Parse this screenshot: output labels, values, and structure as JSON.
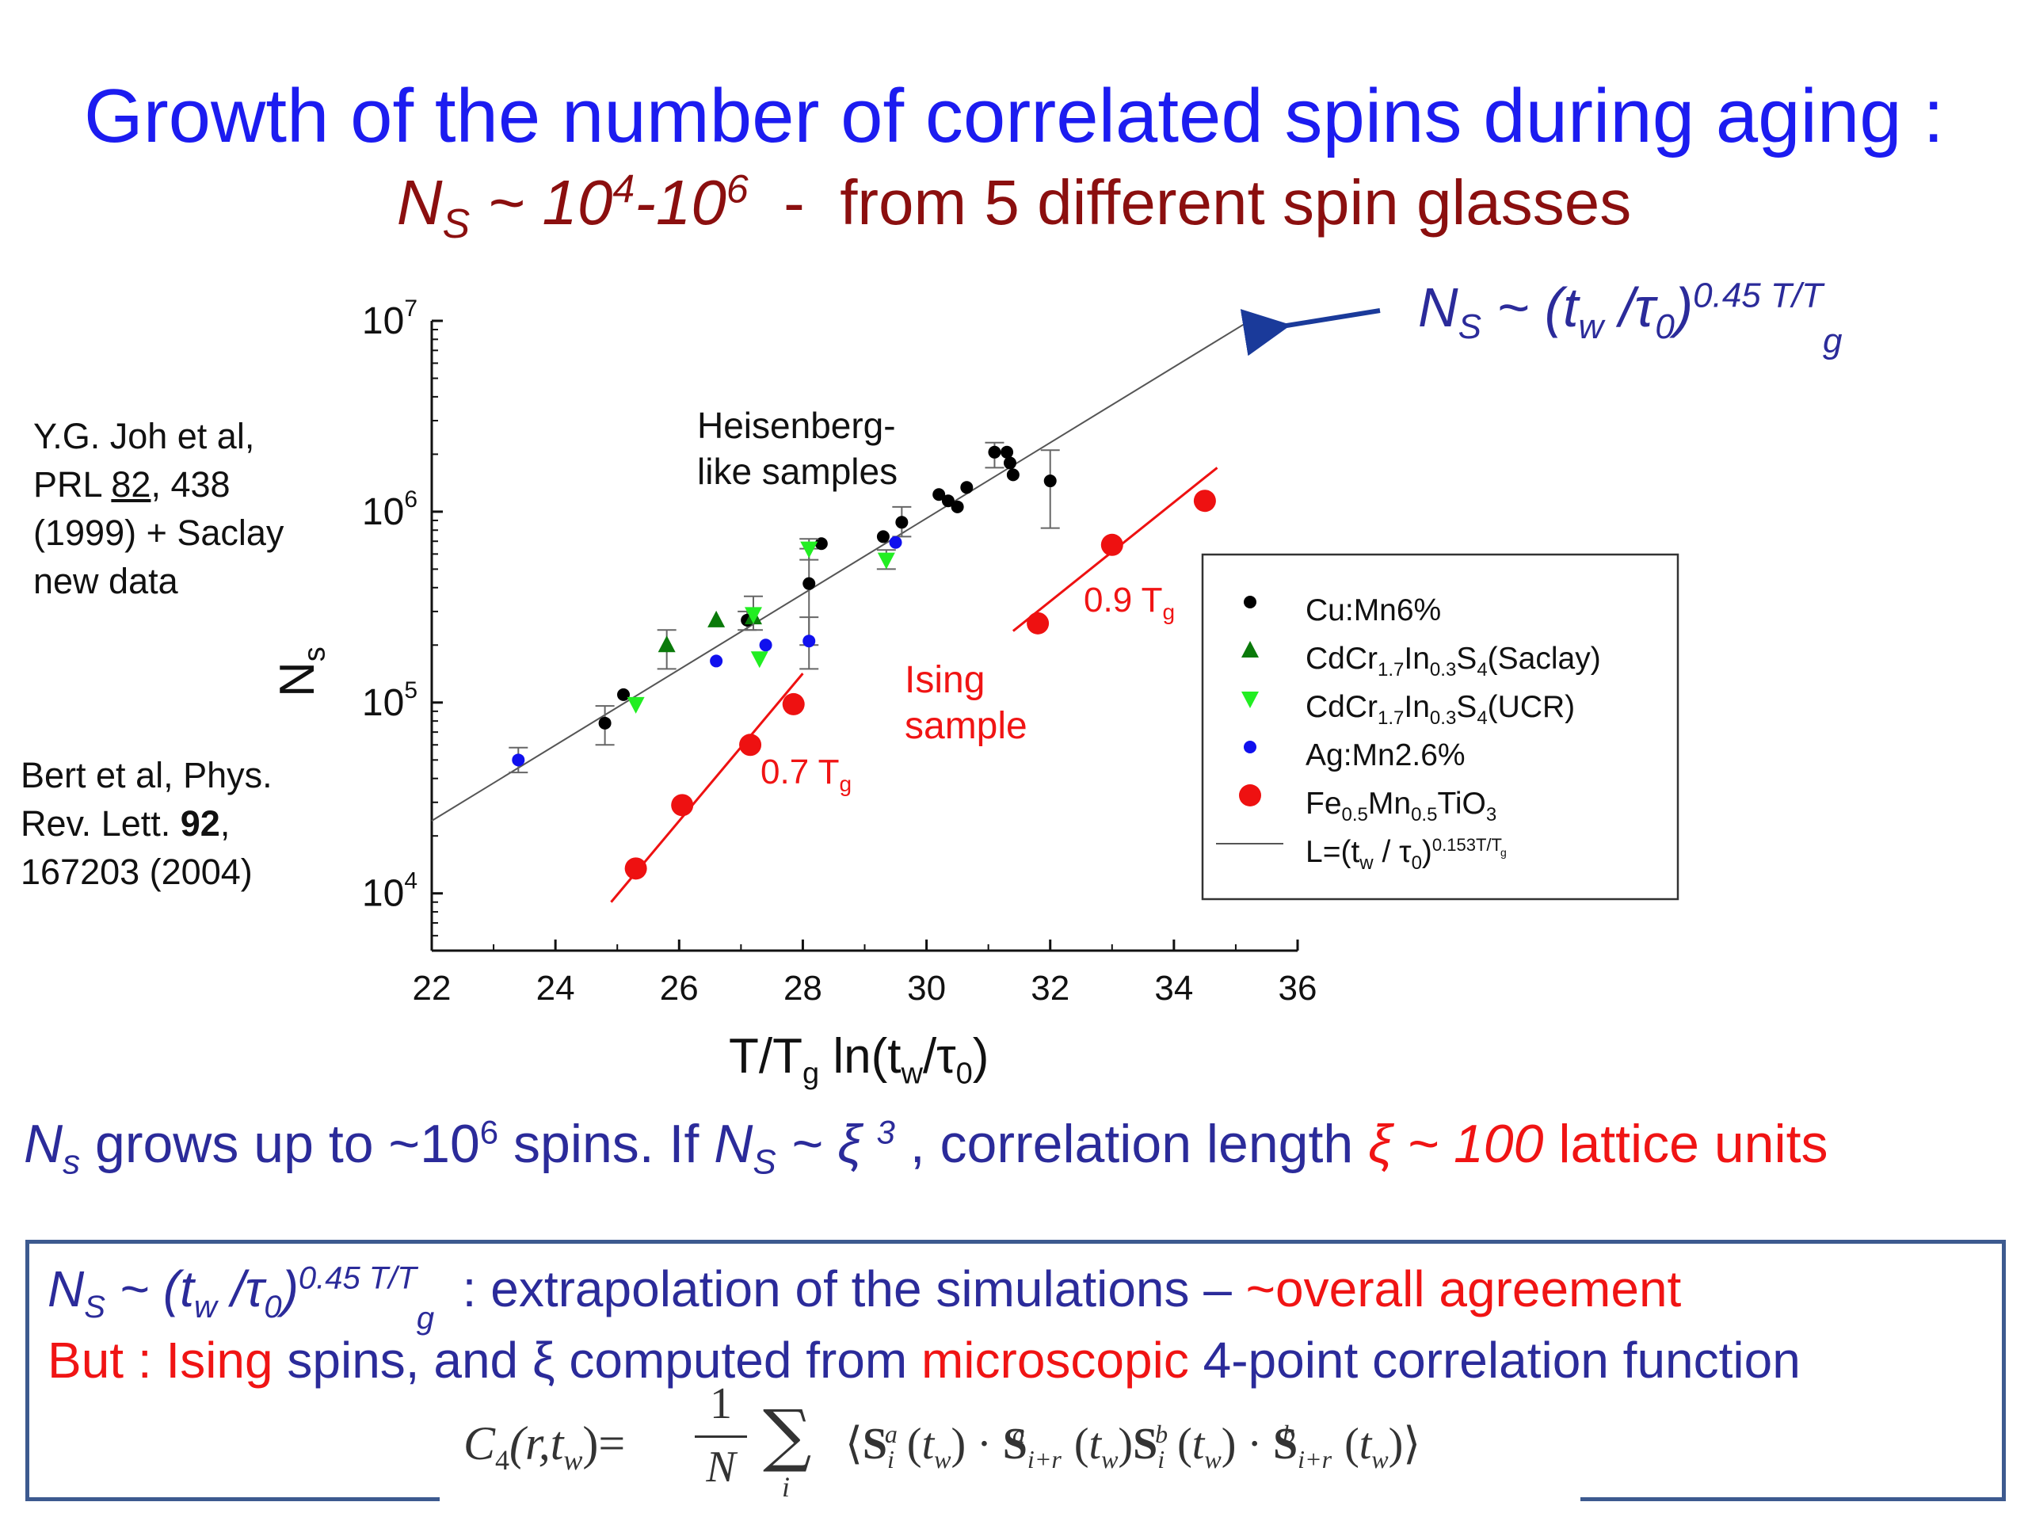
{
  "slide": {
    "title": "Growth of the number of correlated spins during aging :",
    "subtitle_ns": "N",
    "subtitle_ns_sub": "S",
    "subtitle_approx": " ~ 10",
    "subtitle_exp1": "4",
    "subtitle_mid": "-10",
    "subtitle_exp2": "6",
    "subtitle_rest": "  -  from 5 different spin glasses",
    "ref1_lines": [
      "Y.G. Joh et al,",
      "PRL 82, 438",
      "(1999) + Saclay",
      "new data"
    ],
    "ref1_l2_a": "PRL ",
    "ref1_l2_b": "82",
    "ref1_l2_c": ", 438",
    "ref2_l1": "Bert et al, Phys.",
    "ref2_l2_a": "Rev. Lett. ",
    "ref2_l2_b": "92",
    "ref2_l2_c": ",",
    "ref2_l3": "167203 (2004)",
    "law_ns": "N",
    "law_sub": "S",
    "law_mid": " ~ (t",
    "law_w": "w",
    "law_tau": " /τ",
    "law_0": "0",
    "law_close": ")",
    "law_exp": "0.45 T/T",
    "law_g": "g",
    "sentence": {
      "p1": "N",
      "p1sub": "s",
      "p2": " grows up to ~10",
      "p2sup": "6",
      "p3": " spins. If ",
      "p4": "N",
      "p4sub": "S",
      "p5": " ~ ξ ",
      "p5sup": "3",
      "p6": " , correlation length ",
      "p7": "ξ ~ ",
      "p8": "100",
      "p9": " lattice units"
    },
    "box": {
      "l1_ns": "N",
      "l1_sub": "S",
      "l1_mid": " ~ (t",
      "l1_w": "w",
      "l1_tau": " /τ",
      "l1_0": "0",
      "l1_close": ")",
      "l1_exp": "0.45 T/T",
      "l1_g": "g",
      "l1_text": "  : extrapolation of the simulations – ",
      "l1_red": "~overall agreement",
      "l2_but": "But : ",
      "l2_ising": "Ising",
      "l2_mid": " spins, and ξ computed from ",
      "l2_micro": "microscopic",
      "l2_end": " 4-point correlation function",
      "formula_lhs": "C",
      "formula_lhs_sub": "4",
      "formula_args": "(r,t",
      "formula_w": "w",
      "formula_eq": ")=",
      "formula_num": "1",
      "formula_den": "N",
      "formula_sum": "∑",
      "formula_i": "i",
      "formula_body": "⟨S",
      "formula_body_full": "⟨S(t)·S(t)S(t)·S(t)⟩"
    }
  },
  "colors": {
    "title": "#1c1cf0",
    "subtitle": "#8b0f0f",
    "blue_text": "#2b2b9a",
    "red": "#f01414",
    "black_series": "#000000",
    "green_series": "#0a7a0a",
    "lime_series": "#22ee22",
    "blue_series": "#1010ee",
    "red_series": "#ee1111"
  },
  "chart_data": {
    "type": "scatter",
    "xlabel_main": "T/T",
    "xlabel_sub1": "g",
    "xlabel_ln": " ln(t",
    "xlabel_sub2": "w",
    "xlabel_tau": "/τ",
    "xlabel_sub3": "0",
    "xlabel_close": ")",
    "ylabel": "N",
    "ylabel_sub": "s",
    "xlim": [
      22,
      36
    ],
    "ylim_log10": [
      3.7,
      7
    ],
    "y_scale": "log",
    "x_ticks": [
      22,
      24,
      26,
      28,
      30,
      32,
      34,
      36
    ],
    "y_ticks": [
      {
        "base": "10",
        "exp": "4",
        "v": 4
      },
      {
        "base": "10",
        "exp": "5",
        "v": 5
      },
      {
        "base": "10",
        "exp": "6",
        "v": 6
      },
      {
        "base": "10",
        "exp": "7",
        "v": 7
      }
    ],
    "annotations": {
      "heisenberg": [
        "Heisenberg-",
        "like samples"
      ],
      "ising": [
        "Ising",
        "sample"
      ],
      "t07": "0.7 T",
      "t07sub": "g",
      "t09": "0.9 T",
      "t09sub": "g"
    },
    "legend": {
      "placement": "right",
      "entries": [
        {
          "name": "Cu:Mn6%"
        },
        {
          "name_parts": [
            "CdCr",
            "1.7",
            "In",
            "0.3",
            "S",
            "4",
            "(Saclay)"
          ]
        },
        {
          "name_parts": [
            "CdCr",
            "1.7",
            "In",
            "0.3",
            "S",
            "4",
            "(UCR)"
          ]
        },
        {
          "name": "Ag:Mn2.6%"
        },
        {
          "name_parts": [
            "Fe",
            "0.5",
            "Mn",
            "0.5",
            "TiO",
            "3"
          ]
        },
        {
          "name_parts": [
            "L=(t",
            "w",
            " / τ",
            "0",
            ")",
            "0.153T/T",
            "g"
          ]
        }
      ]
    },
    "fit_lines": [
      {
        "name": "L=(t_w / τ_0)^0.153T/T_g",
        "x": [
          22,
          35.2
        ],
        "y": [
          24000,
          9900000
        ],
        "color": "#555555"
      },
      {
        "name": "Ising 0.7 Tg",
        "x": [
          24.9,
          28.0
        ],
        "y": [
          9000,
          142000
        ],
        "color": "#ee1111"
      },
      {
        "name": "Ising 0.9 Tg",
        "x": [
          31.4,
          34.7
        ],
        "y": [
          237000,
          1700000
        ],
        "color": "#ee1111"
      }
    ],
    "series": [
      {
        "name": "Cu:Mn6%",
        "marker": "circle-small",
        "color": "#000000",
        "points": [
          {
            "x": 24.8,
            "y": 78000,
            "lo": 60000,
            "hi": 96000
          },
          {
            "x": 25.1,
            "y": 110000
          },
          {
            "x": 27.1,
            "y": 270000,
            "lo": 240000,
            "hi": 300000
          },
          {
            "x": 28.1,
            "y": 420000,
            "lo": 200000,
            "hi": 640000
          },
          {
            "x": 28.3,
            "y": 680000
          },
          {
            "x": 29.3,
            "y": 740000
          },
          {
            "x": 29.6,
            "y": 880000,
            "lo": 740000,
            "hi": 1060000
          },
          {
            "x": 30.2,
            "y": 1230000
          },
          {
            "x": 30.35,
            "y": 1140000
          },
          {
            "x": 30.5,
            "y": 1060000
          },
          {
            "x": 30.65,
            "y": 1340000
          },
          {
            "x": 31.1,
            "y": 2050000,
            "lo": 1700000,
            "hi": 2300000
          },
          {
            "x": 31.3,
            "y": 2050000
          },
          {
            "x": 31.35,
            "y": 1800000
          },
          {
            "x": 31.4,
            "y": 1560000
          },
          {
            "x": 32.0,
            "y": 1450000,
            "lo": 820000,
            "hi": 2100000
          }
        ]
      },
      {
        "name": "CdCr1.7In0.3S4(Saclay)",
        "marker": "triangle-up",
        "color": "#0a7a0a",
        "points": [
          {
            "x": 25.8,
            "y": 200000,
            "lo": 150000,
            "hi": 240000
          },
          {
            "x": 26.6,
            "y": 270000
          },
          {
            "x": 27.2,
            "y": 280000
          }
        ]
      },
      {
        "name": "CdCr1.7In0.3S4(UCR)",
        "marker": "triangle-down",
        "color": "#22ee22",
        "points": [
          {
            "x": 25.3,
            "y": 98000
          },
          {
            "x": 27.2,
            "y": 290000,
            "lo": 240000,
            "hi": 360000
          },
          {
            "x": 27.3,
            "y": 170000
          },
          {
            "x": 28.1,
            "y": 640000,
            "lo": 560000,
            "hi": 720000
          },
          {
            "x": 29.35,
            "y": 560000,
            "lo": 500000,
            "hi": 630000
          }
        ]
      },
      {
        "name": "Ag:Mn2.6%",
        "marker": "circle-small",
        "color": "#1010ee",
        "points": [
          {
            "x": 23.4,
            "y": 50000,
            "lo": 43000,
            "hi": 58000
          },
          {
            "x": 26.6,
            "y": 165000
          },
          {
            "x": 27.4,
            "y": 200000
          },
          {
            "x": 28.1,
            "y": 210000,
            "lo": 150000,
            "hi": 280000
          },
          {
            "x": 29.5,
            "y": 690000
          }
        ]
      },
      {
        "name": "Fe0.5Mn0.5TiO3",
        "marker": "circle-large",
        "color": "#ee1111",
        "points": [
          {
            "x": 25.3,
            "y": 13500
          },
          {
            "x": 26.05,
            "y": 29000
          },
          {
            "x": 27.15,
            "y": 60000
          },
          {
            "x": 27.85,
            "y": 98000
          },
          {
            "x": 31.8,
            "y": 260000
          },
          {
            "x": 33.0,
            "y": 670000
          },
          {
            "x": 34.5,
            "y": 1140000
          }
        ]
      }
    ]
  }
}
